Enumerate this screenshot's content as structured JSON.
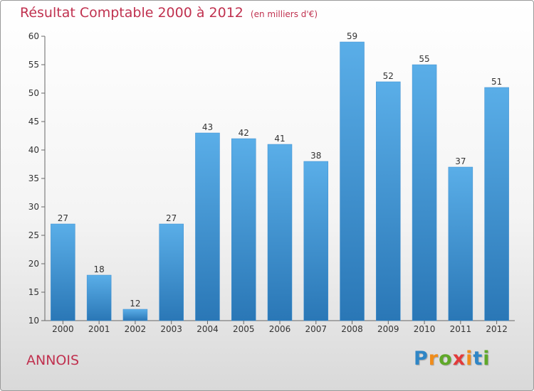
{
  "header": {
    "title": "Résultat Comptable 2000 à 2012",
    "unit": "(en milliers d'€)"
  },
  "footer": {
    "place": "ANNOIS",
    "logo": [
      "P",
      "r",
      "o",
      "x",
      "i",
      "t",
      "i"
    ],
    "logo_colors": [
      "#2f86c6",
      "#f08c1a",
      "#5fa829",
      "#e23a3a",
      "#f08c1a",
      "#2f86c6",
      "#5fa829"
    ]
  },
  "colors": {
    "title": "#c0314f",
    "bar_top": "#5aaee8",
    "bar_bottom": "#2a77b6"
  },
  "chart_data": {
    "type": "bar",
    "title": "Résultat Comptable 2000 à 2012",
    "subtitle": "(en milliers d'€)",
    "xlabel": "",
    "ylabel": "",
    "categories": [
      "2000",
      "2001",
      "2002",
      "2003",
      "2004",
      "2005",
      "2006",
      "2007",
      "2008",
      "2009",
      "2010",
      "2011",
      "2012"
    ],
    "values": [
      27,
      18,
      12,
      27,
      43,
      42,
      41,
      38,
      59,
      52,
      55,
      37,
      51
    ],
    "ylim": [
      10,
      60
    ],
    "yticks": [
      10,
      15,
      20,
      25,
      30,
      35,
      40,
      45,
      50,
      55,
      60
    ],
    "grid": false,
    "legend": "none"
  }
}
